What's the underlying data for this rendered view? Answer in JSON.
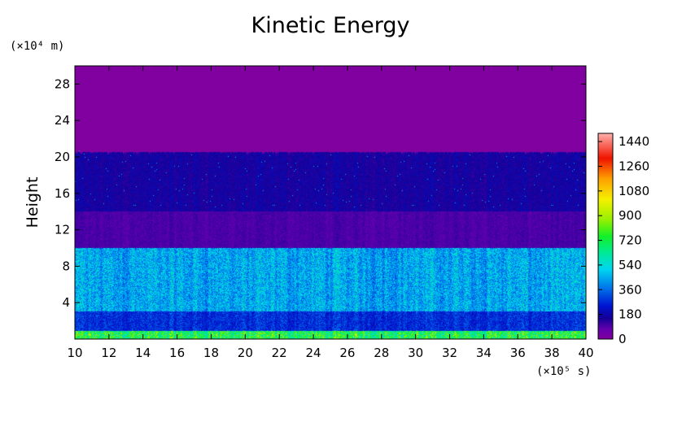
{
  "chart_data": {
    "type": "heatmap",
    "title": "Kinetic Energy",
    "ylabel": "Height",
    "y_unit": "(×10⁴ m)",
    "x_unit": "(×10⁵ s)",
    "xlim": [
      10,
      40
    ],
    "ylim": [
      0,
      30
    ],
    "x_ticks": [
      "10",
      "12",
      "14",
      "16",
      "18",
      "20",
      "22",
      "24",
      "26",
      "28",
      "30",
      "32",
      "34",
      "36",
      "38",
      "40"
    ],
    "y_ticks": [
      "4",
      "8",
      "12",
      "16",
      "20",
      "24",
      "28"
    ],
    "colorbar": {
      "range": [
        0,
        1500
      ],
      "ticks": [
        "0",
        "180",
        "360",
        "540",
        "720",
        "900",
        "1080",
        "1260",
        "1440"
      ]
    },
    "regions": [
      {
        "height_range": [
          0,
          0.9
        ],
        "typical_value": 680
      },
      {
        "height_range": [
          0.9,
          3
        ],
        "typical_value": 260
      },
      {
        "height_range": [
          3,
          10
        ],
        "typical_value": 420
      },
      {
        "height_range": [
          10,
          14
        ],
        "typical_value": 90
      },
      {
        "height_range": [
          14,
          20.5
        ],
        "typical_value": 150
      },
      {
        "height_range": [
          20.5,
          30
        ],
        "typical_value": 0
      }
    ]
  }
}
